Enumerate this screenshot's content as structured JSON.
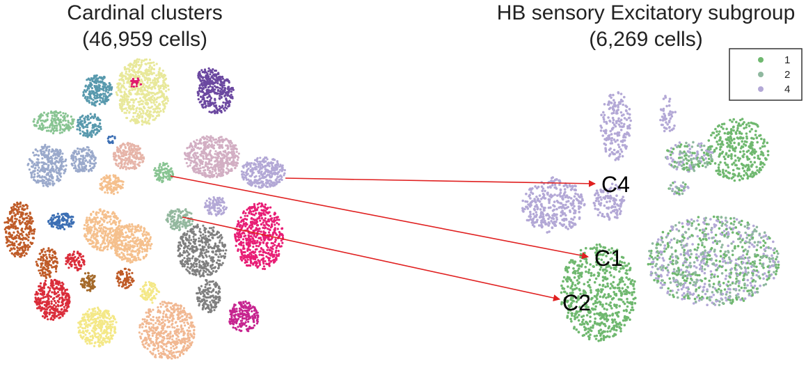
{
  "chart_data": [
    {
      "type": "scatter",
      "title": "Cardinal clusters",
      "subtitle": "(46,959 cells)",
      "colors": [
        "#e8e89a",
        "#5899ad",
        "#6b48a0",
        "#e0186c",
        "#88c492",
        "#9aa9cb",
        "#d2aec3",
        "#b3a8d6",
        "#e6b4a8",
        "#f5c08d",
        "#93b89e",
        "#3c6fb4",
        "#bf5b27",
        "#da2d3a",
        "#7f7f7f",
        "#e81d75",
        "#c6248f",
        "#f4e887",
        "#f1b892",
        "#a56a2b"
      ],
      "annotations": [
        {
          "label": "C4",
          "from_cluster": "purple-right",
          "to": "C4"
        },
        {
          "label": "C1",
          "from_cluster": "green-center",
          "to": "C1"
        },
        {
          "label": "C2",
          "from_cluster": "grey-green-center",
          "to": "C2"
        }
      ]
    },
    {
      "type": "scatter",
      "title": "HB sensory Excitatory subgroup",
      "subtitle": "(6,269 cells)",
      "legend": {
        "placement": "top-right",
        "entries": [
          {
            "name": "1",
            "color": "#6fb86f"
          },
          {
            "name": "2",
            "color": "#8fb89f"
          },
          {
            "name": "4",
            "color": "#b3a8d6"
          }
        ]
      },
      "cluster_labels": [
        "C4",
        "C1",
        "C2"
      ]
    }
  ]
}
